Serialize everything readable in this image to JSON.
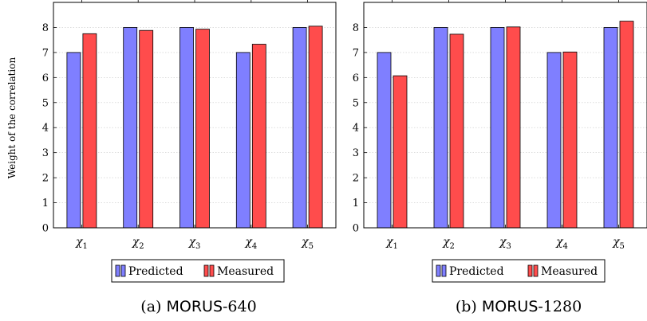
{
  "charts": [
    {
      "legend": {
        "predicted": "Predicted",
        "measured": "Measured"
      },
      "caption": {
        "prefix": "(a) ",
        "name": "MORUS",
        "suffix": "-640"
      }
    },
    {
      "legend": {
        "predicted": "Predicted",
        "measured": "Measured"
      },
      "caption": {
        "prefix": "(b) ",
        "name": "MORUS",
        "suffix": "-1280"
      }
    }
  ],
  "colors": {
    "predicted": "#7f7fff",
    "measured": "#ff4c4c",
    "grid": "#c8c8c8"
  },
  "chart_data": [
    {
      "type": "bar",
      "categories": [
        "χ1",
        "χ2",
        "χ3",
        "χ4",
        "χ5"
      ],
      "ylabel": "Weight of the correlation",
      "ylim": [
        0,
        9
      ],
      "yticks": [
        0,
        1,
        2,
        3,
        4,
        5,
        6,
        7,
        8
      ],
      "grid": true,
      "legend_position": "bottom",
      "series": [
        {
          "name": "Predicted",
          "values": [
            7,
            8,
            8,
            7,
            8
          ]
        },
        {
          "name": "Measured",
          "values": [
            7.75,
            7.88,
            7.93,
            7.33,
            8.05
          ]
        }
      ]
    },
    {
      "type": "bar",
      "categories": [
        "χ1",
        "χ2",
        "χ3",
        "χ4",
        "χ5"
      ],
      "ylabel": "",
      "ylim": [
        0,
        9
      ],
      "yticks": [
        0,
        1,
        2,
        3,
        4,
        5,
        6,
        7,
        8
      ],
      "grid": true,
      "legend_position": "bottom",
      "series": [
        {
          "name": "Predicted",
          "values": [
            7,
            8,
            8,
            7,
            8
          ]
        },
        {
          "name": "Measured",
          "values": [
            6.07,
            7.73,
            8.02,
            7.02,
            8.25
          ]
        }
      ]
    }
  ]
}
